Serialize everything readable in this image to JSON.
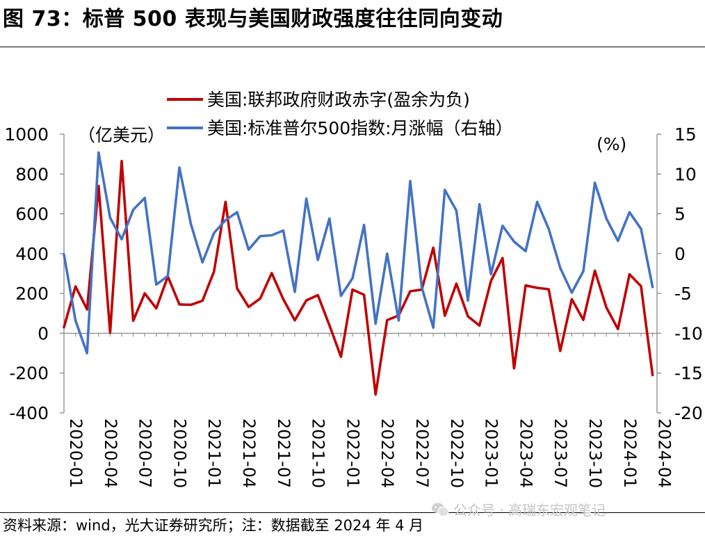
{
  "title": "图 73：标普 500 表现与美国财政强度往往同向变动",
  "source": "资料来源：wind，光大证券研究所；注：数据截至 2024 年 4 月",
  "watermark": "公众号 · 高瑞东宏观笔记",
  "colors": {
    "deficit": "#C00000",
    "spx": "#4472C4",
    "axis": "#7f7f7f"
  },
  "chart_data": {
    "type": "line",
    "title": "",
    "left_axis_unit": "（亿美元）",
    "right_axis_unit": "(%)",
    "ylim_left": [
      -400,
      1000
    ],
    "ylim_right": [
      -20,
      15
    ],
    "left_ticks": [
      "1000",
      "800",
      "600",
      "400",
      "200",
      "0",
      "-200",
      "-400"
    ],
    "right_ticks": [
      "15",
      "10",
      "5",
      "0",
      "-5",
      "-10",
      "-15",
      "-20"
    ],
    "x_labels": [
      "2020-01",
      "2020-04",
      "2020-07",
      "2020-10",
      "2021-01",
      "2021-04",
      "2021-07",
      "2021-10",
      "2022-01",
      "2022-04",
      "2022-07",
      "2022-10",
      "2023-01",
      "2023-04",
      "2023-07",
      "2023-10",
      "2024-01",
      "2024-04"
    ],
    "x": [
      "2020-01",
      "2020-02",
      "2020-03",
      "2020-04",
      "2020-05",
      "2020-06",
      "2020-07",
      "2020-08",
      "2020-09",
      "2020-10",
      "2020-11",
      "2020-12",
      "2021-01",
      "2021-02",
      "2021-03",
      "2021-04",
      "2021-05",
      "2021-06",
      "2021-07",
      "2021-08",
      "2021-09",
      "2021-10",
      "2021-11",
      "2021-12",
      "2022-01",
      "2022-02",
      "2022-03",
      "2022-04",
      "2022-05",
      "2022-06",
      "2022-07",
      "2022-08",
      "2022-09",
      "2022-10",
      "2022-11",
      "2022-12",
      "2023-01",
      "2023-02",
      "2023-03",
      "2023-04",
      "2023-05",
      "2023-06",
      "2023-07",
      "2023-08",
      "2023-09",
      "2023-10",
      "2023-11",
      "2023-12",
      "2024-01",
      "2024-02",
      "2024-03",
      "2024-04"
    ],
    "series": [
      {
        "name": "美国:联邦政府财政赤字(盈余为负)",
        "axis": "left",
        "values": [
          30,
          235,
          120,
          740,
          3,
          865,
          63,
          200,
          125,
          285,
          145,
          143,
          163,
          310,
          660,
          225,
          132,
          174,
          302,
          171,
          65,
          165,
          191,
          40,
          -118,
          219,
          193,
          -308,
          66,
          89,
          211,
          219,
          430,
          88,
          249,
          85,
          39,
          263,
          378,
          -176,
          240,
          228,
          221,
          -89,
          171,
          67,
          314,
          129,
          21,
          296,
          236,
          -210
        ]
      },
      {
        "name": "美国:标准普尔500指数:月涨幅（右轴）",
        "axis": "right",
        "values": [
          -0.1,
          -8.4,
          -12.5,
          12.7,
          4.5,
          1.8,
          5.5,
          7.0,
          -3.9,
          -2.8,
          10.8,
          3.7,
          -1.1,
          2.6,
          4.2,
          5.2,
          0.5,
          2.2,
          2.3,
          2.9,
          -4.8,
          6.9,
          -0.8,
          4.4,
          -5.3,
          -3.1,
          3.6,
          -8.8,
          0.0,
          -8.4,
          9.1,
          -4.2,
          -9.3,
          8.0,
          5.4,
          -5.9,
          6.2,
          -2.6,
          3.5,
          1.5,
          0.3,
          6.5,
          3.1,
          -1.8,
          -4.9,
          -2.2,
          8.9,
          4.4,
          1.6,
          5.2,
          3.1,
          -4.2
        ]
      }
    ]
  }
}
